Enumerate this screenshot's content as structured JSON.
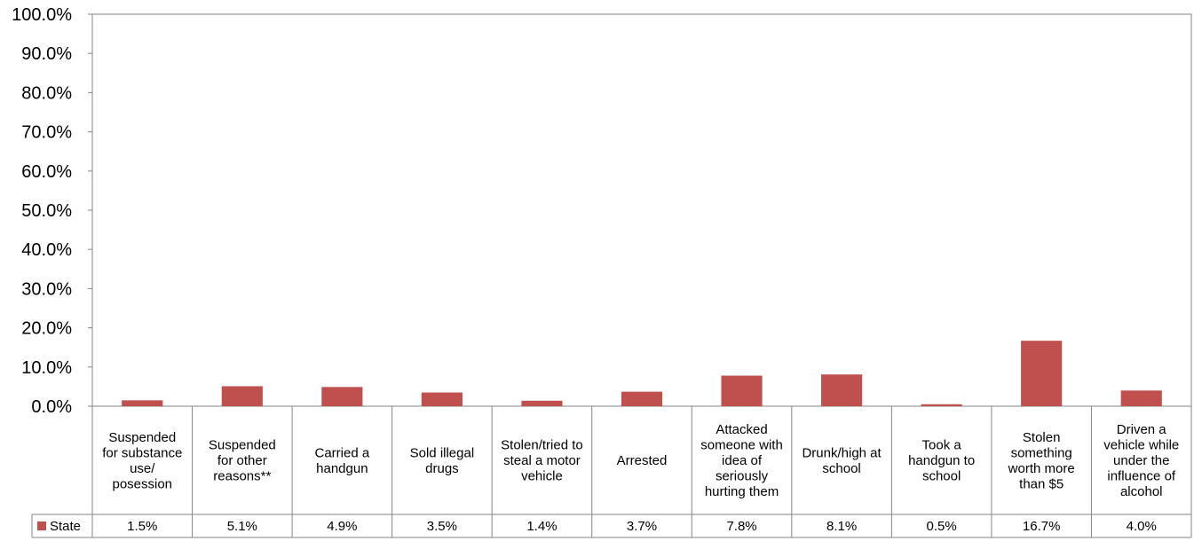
{
  "chart_data": {
    "type": "bar",
    "categories": [
      "Suspended for substance use/ posession",
      "Suspended for other reasons**",
      "Carried a handgun",
      "Sold illegal drugs",
      "Stolen/tried to steal a motor vehicle",
      "Arrested",
      "Attacked someone with idea of seriously hurting them",
      "Drunk/high at school",
      "Took a handgun to school",
      "Stolen something worth more than $5",
      "Driven a vehicle while under the influence of alcohol"
    ],
    "category_label_lines": [
      [
        "Suspended",
        "for substance",
        "use/",
        "posession"
      ],
      [
        "Suspended",
        "for other",
        "reasons**"
      ],
      [
        "Carried a",
        "handgun"
      ],
      [
        "Sold illegal",
        "drugs"
      ],
      [
        "Stolen/tried to",
        "steal a motor",
        "vehicle"
      ],
      [
        "Arrested"
      ],
      [
        "Attacked",
        "someone with",
        "idea of",
        "seriously",
        "hurting them"
      ],
      [
        "Drunk/high at",
        "school"
      ],
      [
        "Took a",
        "handgun to",
        "school"
      ],
      [
        "Stolen",
        "something",
        "worth more",
        "than $5"
      ],
      [
        "Driven a",
        "vehicle while",
        "under the",
        "influence of",
        "alcohol"
      ]
    ],
    "series": [
      {
        "name": "State",
        "color": "#C0504D",
        "values": [
          1.5,
          5.1,
          4.9,
          3.5,
          1.4,
          3.7,
          7.8,
          8.1,
          0.5,
          16.7,
          4.0
        ],
        "labels": [
          "1.5%",
          "5.1%",
          "4.9%",
          "3.5%",
          "1.4%",
          "3.7%",
          "7.8%",
          "8.1%",
          "0.5%",
          "16.7%",
          "4.0%"
        ]
      }
    ],
    "yticks": [
      "0.0%",
      "10.0%",
      "20.0%",
      "30.0%",
      "40.0%",
      "50.0%",
      "60.0%",
      "70.0%",
      "80.0%",
      "90.0%",
      "100.0%"
    ],
    "ylim": [
      0,
      100
    ],
    "grid": false,
    "legend": "data-table",
    "title": "",
    "xlabel": "",
    "ylabel": ""
  }
}
